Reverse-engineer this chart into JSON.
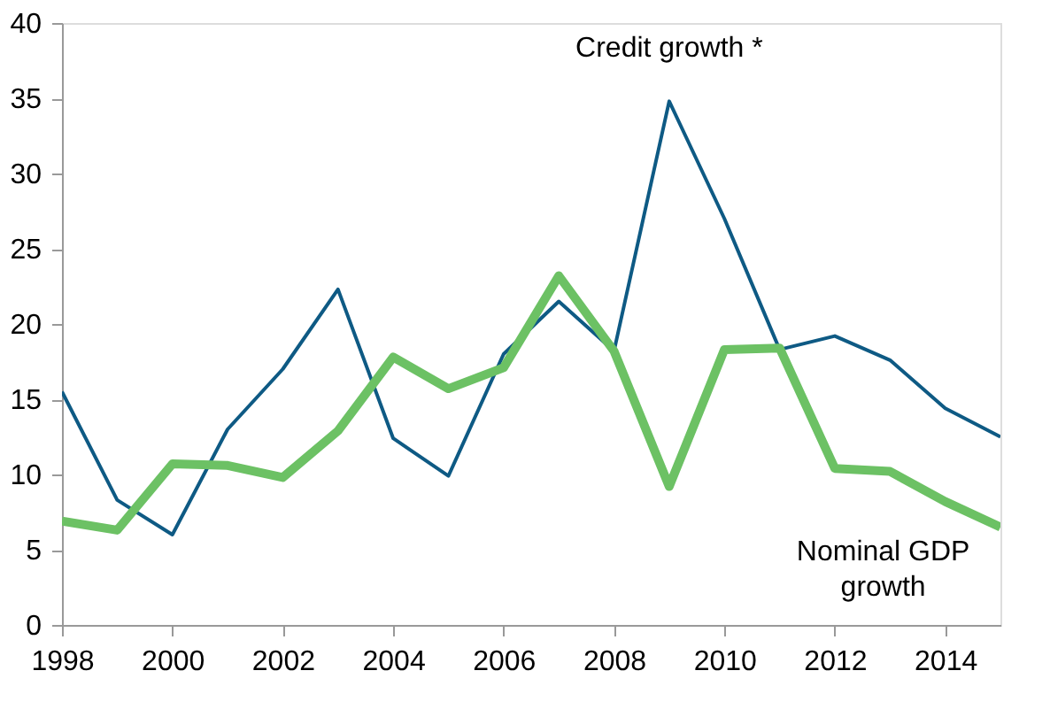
{
  "chart_data": {
    "type": "line",
    "x": [
      1998,
      1999,
      2000,
      2001,
      2002,
      2003,
      2004,
      2005,
      2006,
      2007,
      2008,
      2009,
      2010,
      2011,
      2012,
      2013,
      2014,
      2015
    ],
    "series": [
      {
        "name": "Credit growth *",
        "color": "#0e5a84",
        "values": [
          15.5,
          8.3,
          6.0,
          13.0,
          17.0,
          22.3,
          12.4,
          9.9,
          18.0,
          21.5,
          18.2,
          34.8,
          27.0,
          18.3,
          19.2,
          17.6,
          14.4,
          12.5
        ]
      },
      {
        "name": "Nominal GDP growth",
        "color": "#6cc164",
        "values": [
          6.9,
          6.3,
          10.7,
          10.6,
          9.8,
          12.9,
          17.8,
          15.7,
          17.1,
          23.2,
          18.2,
          9.2,
          18.3,
          18.4,
          10.4,
          10.2,
          8.2,
          6.5
        ]
      }
    ],
    "xlim": [
      1998,
      2015
    ],
    "xticks": [
      1998,
      2000,
      2002,
      2004,
      2006,
      2008,
      2010,
      2012,
      2014
    ],
    "ylim": [
      0,
      40
    ],
    "yticks": [
      0,
      5,
      10,
      15,
      20,
      25,
      30,
      35,
      40
    ],
    "grid": false,
    "legend": false,
    "marker": "none",
    "line_style": "solid"
  }
}
